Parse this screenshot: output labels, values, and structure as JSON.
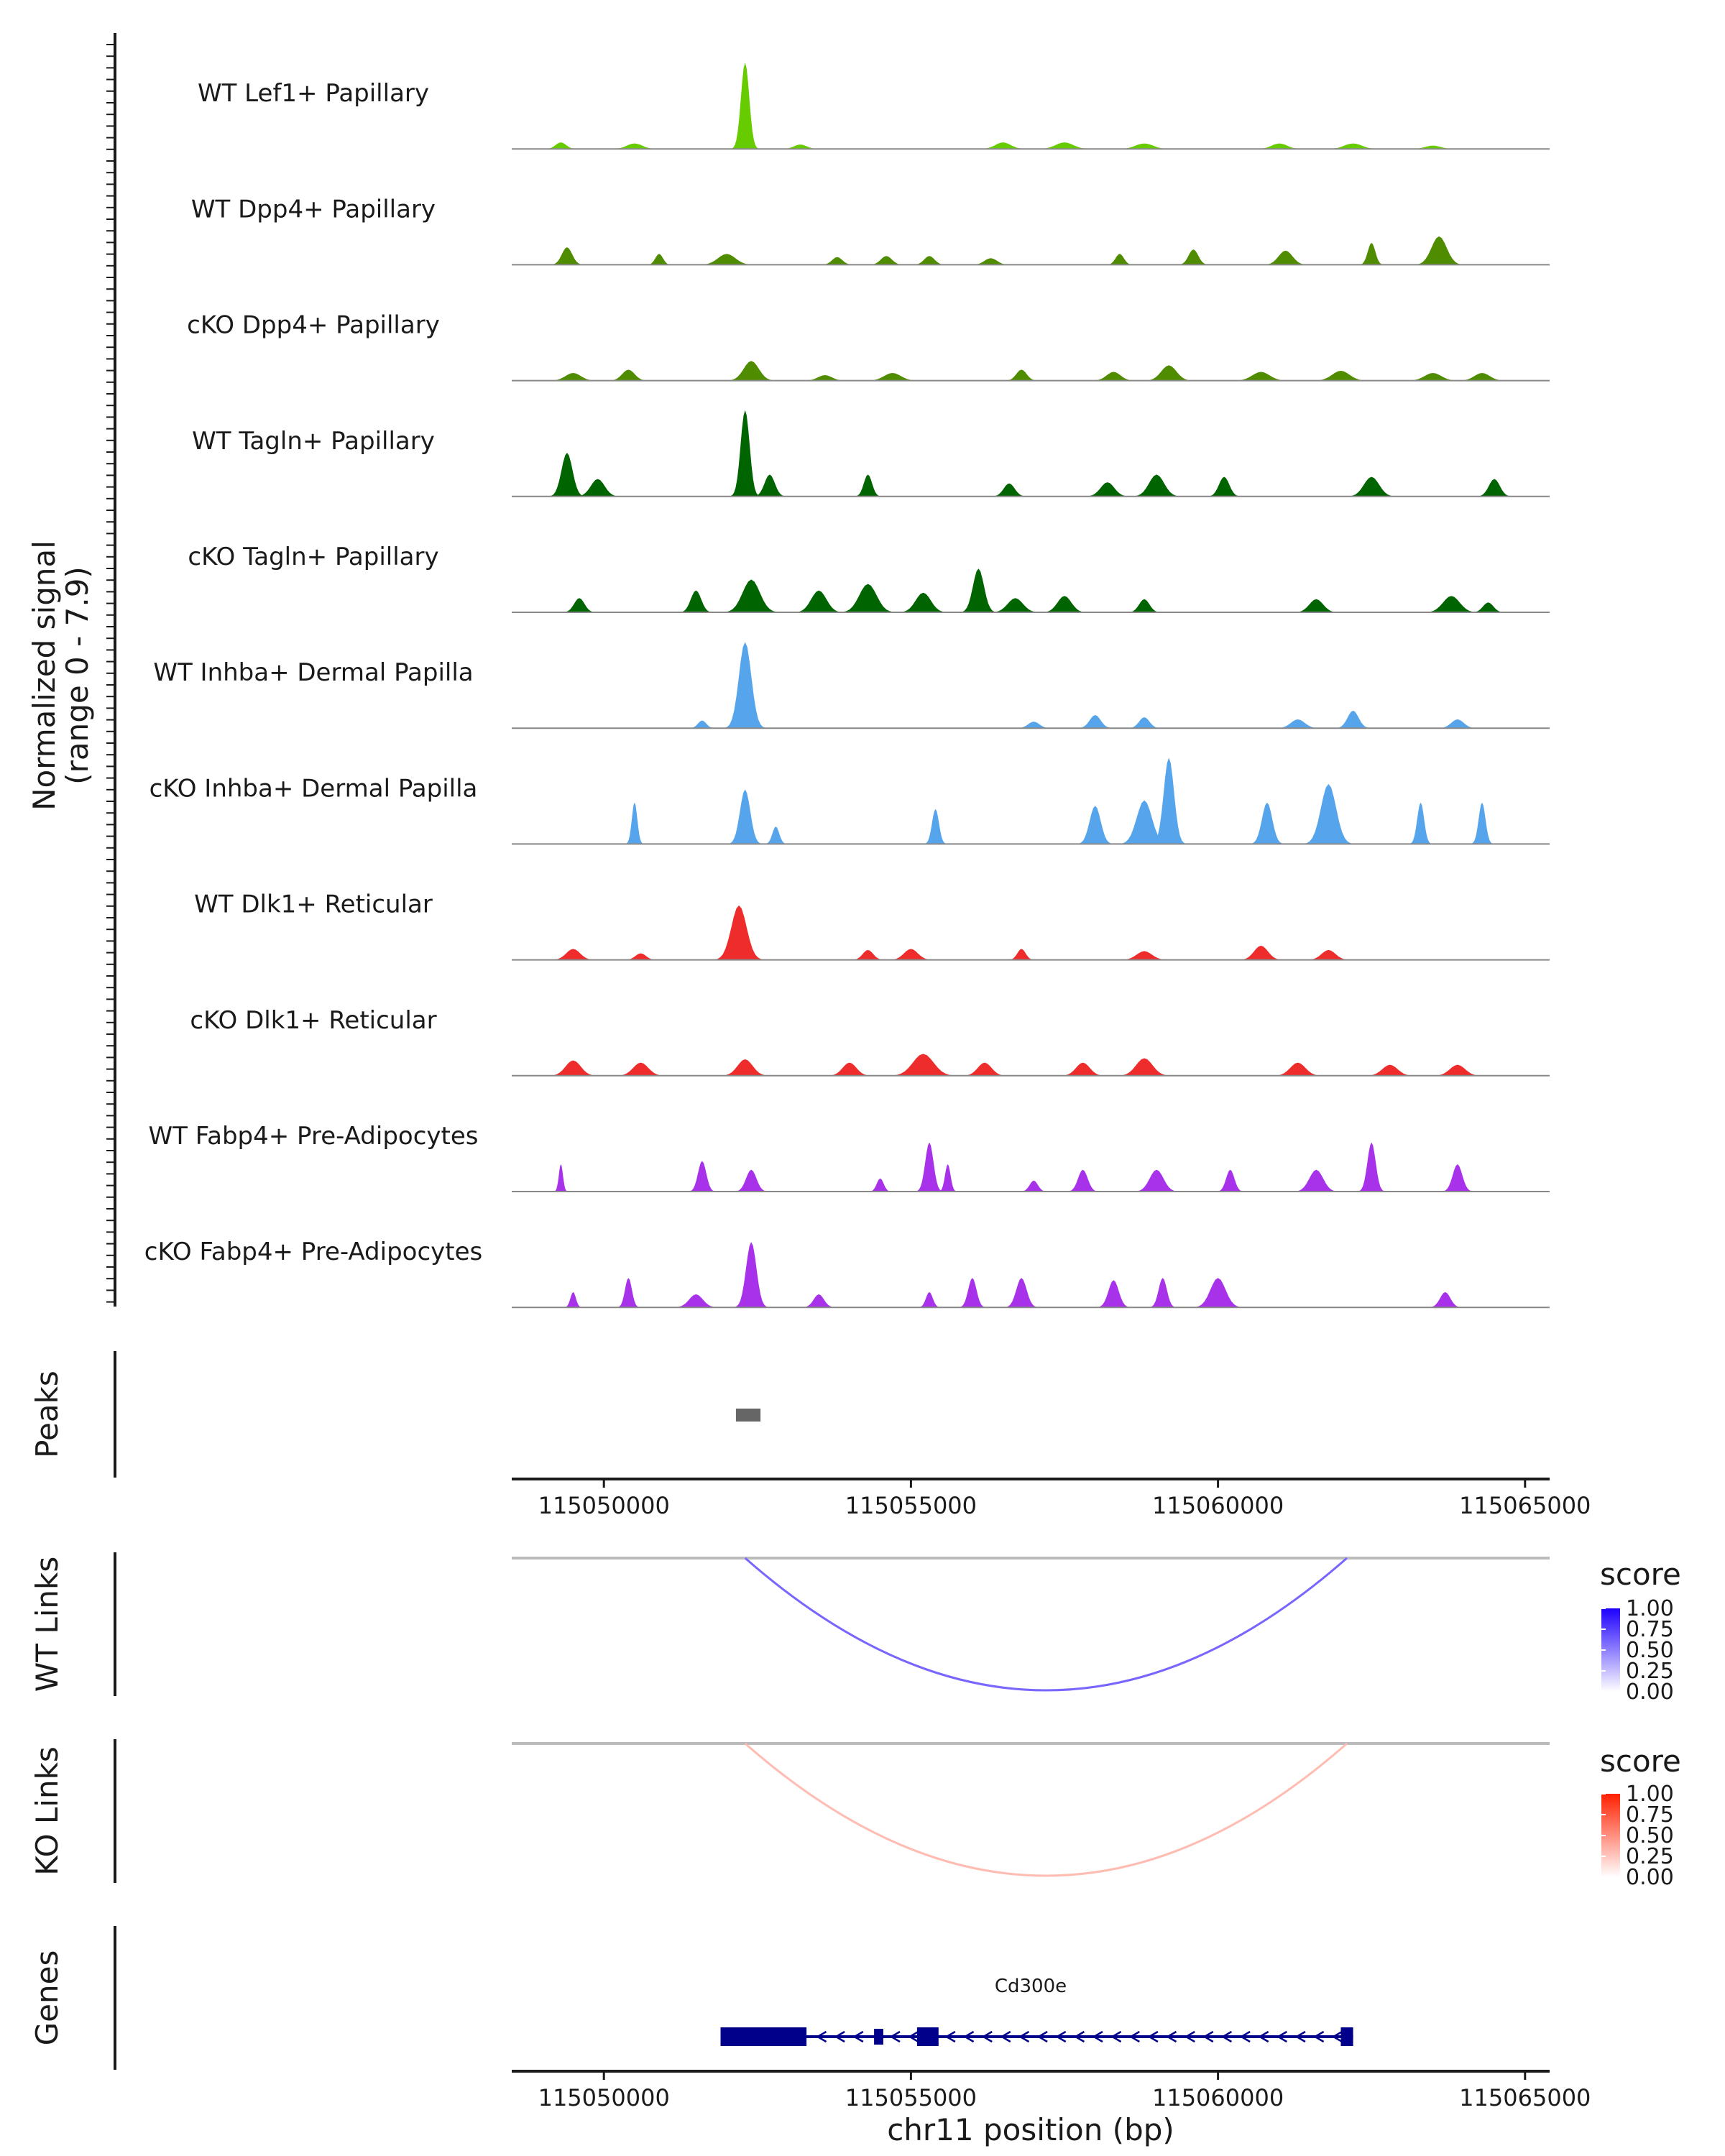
{
  "chart_data": {
    "type": "area",
    "title": "",
    "chromosome": "chr11",
    "xlabel": "chr11 position (bp)",
    "xlim": [
      115048500,
      115065400
    ],
    "x_ticks": [
      115050000,
      115055000,
      115060000,
      115065000
    ],
    "x_tick_labels": [
      "115050000",
      "115055000",
      "115060000",
      "115065000"
    ],
    "ylabel_line1": "Normalized signal",
    "ylabel_line2": "(range 0 - 7.9)",
    "ylim": [
      0,
      7.9
    ],
    "coverage_tracks": [
      {
        "name": "WT Lef1+ Papillary",
        "color": "#66CC00",
        "peaks": [
          [
            115052300,
            7.9,
            120
          ],
          [
            115049300,
            0.6,
            150
          ],
          [
            115050500,
            0.5,
            220
          ],
          [
            115053200,
            0.4,
            180
          ],
          [
            115056500,
            0.6,
            220
          ],
          [
            115057500,
            0.6,
            250
          ],
          [
            115058800,
            0.5,
            250
          ],
          [
            115061000,
            0.5,
            220
          ],
          [
            115062200,
            0.5,
            250
          ],
          [
            115063500,
            0.3,
            220
          ]
        ]
      },
      {
        "name": "WT Dpp4+ Papillary",
        "color": "#4F8C00",
        "peaks": [
          [
            115049400,
            1.6,
            150
          ],
          [
            115050900,
            1.0,
            110
          ],
          [
            115052000,
            1.0,
            250
          ],
          [
            115053800,
            0.7,
            150
          ],
          [
            115054600,
            0.8,
            160
          ],
          [
            115055300,
            0.8,
            150
          ],
          [
            115056300,
            0.6,
            180
          ],
          [
            115058400,
            1.0,
            120
          ],
          [
            115059600,
            1.4,
            140
          ],
          [
            115061100,
            1.3,
            200
          ],
          [
            115062500,
            2.0,
            110
          ],
          [
            115063600,
            2.6,
            220
          ]
        ]
      },
      {
        "name": "cKO Dpp4+ Papillary",
        "color": "#4F8C00",
        "peaks": [
          [
            115049500,
            0.7,
            220
          ],
          [
            115050400,
            1.0,
            180
          ],
          [
            115052400,
            1.8,
            220
          ],
          [
            115053600,
            0.5,
            200
          ],
          [
            115054700,
            0.7,
            240
          ],
          [
            115056800,
            1.0,
            150
          ],
          [
            115058300,
            0.8,
            200
          ],
          [
            115059200,
            1.4,
            220
          ],
          [
            115060700,
            0.8,
            250
          ],
          [
            115062000,
            0.9,
            250
          ],
          [
            115063500,
            0.7,
            240
          ],
          [
            115064300,
            0.7,
            220
          ]
        ]
      },
      {
        "name": "WT Tagln+ Papillary",
        "color": "#006400",
        "peaks": [
          [
            115049400,
            4.0,
            160
          ],
          [
            115049900,
            1.6,
            200
          ],
          [
            115052300,
            7.9,
            130
          ],
          [
            115052700,
            2.0,
            150
          ],
          [
            115054300,
            2.0,
            120
          ],
          [
            115056600,
            1.2,
            160
          ],
          [
            115058200,
            1.3,
            200
          ],
          [
            115059000,
            2.0,
            220
          ],
          [
            115060100,
            1.8,
            150
          ],
          [
            115062500,
            1.8,
            220
          ],
          [
            115064500,
            1.6,
            160
          ]
        ]
      },
      {
        "name": "cKO Tagln+ Papillary",
        "color": "#006400",
        "peaks": [
          [
            115049600,
            1.3,
            150
          ],
          [
            115051500,
            2.0,
            150
          ],
          [
            115052400,
            3.0,
            250
          ],
          [
            115053500,
            2.0,
            220
          ],
          [
            115054300,
            2.6,
            250
          ],
          [
            115055200,
            1.8,
            220
          ],
          [
            115056100,
            4.0,
            160
          ],
          [
            115056700,
            1.3,
            220
          ],
          [
            115057500,
            1.5,
            200
          ],
          [
            115058800,
            1.2,
            150
          ],
          [
            115061600,
            1.2,
            200
          ],
          [
            115063800,
            1.5,
            240
          ],
          [
            115064400,
            0.9,
            150
          ]
        ]
      },
      {
        "name": "WT Inhba+ Dermal Papilla",
        "color": "#56A5EC",
        "peaks": [
          [
            115052300,
            7.9,
            180
          ],
          [
            115051600,
            0.7,
            120
          ],
          [
            115057000,
            0.6,
            160
          ],
          [
            115058000,
            1.2,
            160
          ],
          [
            115058800,
            1.0,
            150
          ],
          [
            115061300,
            0.8,
            200
          ],
          [
            115062200,
            1.6,
            160
          ],
          [
            115063900,
            0.8,
            180
          ]
        ]
      },
      {
        "name": "cKO Inhba+ Dermal Papilla",
        "color": "#56A5EC",
        "peaks": [
          [
            115050500,
            3.8,
            80
          ],
          [
            115052300,
            5.0,
            150
          ],
          [
            115052800,
            1.6,
            100
          ],
          [
            115055400,
            3.2,
            100
          ],
          [
            115058000,
            3.5,
            160
          ],
          [
            115058800,
            4.0,
            220
          ],
          [
            115059200,
            7.9,
            150
          ],
          [
            115060800,
            3.8,
            150
          ],
          [
            115061800,
            5.5,
            220
          ],
          [
            115063300,
            3.8,
            100
          ],
          [
            115064300,
            3.8,
            100
          ]
        ]
      },
      {
        "name": "WT Dlk1+ Reticular",
        "color": "#EE2C2C",
        "peaks": [
          [
            115049500,
            1.0,
            200
          ],
          [
            115050600,
            0.6,
            150
          ],
          [
            115052200,
            5.0,
            220
          ],
          [
            115054300,
            0.9,
            150
          ],
          [
            115055000,
            1.0,
            200
          ],
          [
            115056800,
            1.0,
            120
          ],
          [
            115058800,
            0.8,
            220
          ],
          [
            115060700,
            1.3,
            200
          ],
          [
            115061800,
            0.9,
            200
          ]
        ]
      },
      {
        "name": "cKO Dlk1+ Reticular",
        "color": "#EE2C2C",
        "peaks": [
          [
            115049500,
            1.4,
            220
          ],
          [
            115050600,
            1.2,
            220
          ],
          [
            115052300,
            1.5,
            220
          ],
          [
            115054000,
            1.2,
            200
          ],
          [
            115055200,
            2.0,
            300
          ],
          [
            115056200,
            1.2,
            200
          ],
          [
            115057800,
            1.2,
            200
          ],
          [
            115058800,
            1.6,
            240
          ],
          [
            115061300,
            1.2,
            220
          ],
          [
            115062800,
            1.0,
            220
          ],
          [
            115063900,
            1.0,
            220
          ]
        ]
      },
      {
        "name": "WT Fabp4+ Pre-Adipocytes",
        "color": "#A832EA",
        "peaks": [
          [
            115049300,
            2.5,
            60
          ],
          [
            115051600,
            2.8,
            120
          ],
          [
            115052400,
            2.0,
            150
          ],
          [
            115054500,
            1.2,
            100
          ],
          [
            115055300,
            4.5,
            120
          ],
          [
            115055600,
            2.5,
            80
          ],
          [
            115057000,
            1.0,
            120
          ],
          [
            115057800,
            2.0,
            140
          ],
          [
            115059000,
            2.0,
            200
          ],
          [
            115060200,
            2.0,
            120
          ],
          [
            115061600,
            2.0,
            200
          ],
          [
            115062500,
            4.5,
            120
          ],
          [
            115063900,
            2.5,
            140
          ]
        ]
      },
      {
        "name": "cKO Fabp4+ Pre-Adipocytes",
        "color": "#A832EA",
        "peaks": [
          [
            115049500,
            1.4,
            80
          ],
          [
            115050400,
            2.7,
            100
          ],
          [
            115051500,
            1.2,
            200
          ],
          [
            115052400,
            6.0,
            150
          ],
          [
            115053500,
            1.2,
            150
          ],
          [
            115055300,
            1.4,
            100
          ],
          [
            115056000,
            2.7,
            120
          ],
          [
            115056800,
            2.7,
            150
          ],
          [
            115058300,
            2.5,
            150
          ],
          [
            115059100,
            2.7,
            120
          ],
          [
            115060000,
            2.7,
            220
          ],
          [
            115063700,
            1.4,
            150
          ]
        ]
      }
    ],
    "peaks_track": {
      "label": "Peaks",
      "regions": [
        [
          115052150,
          115052550
        ]
      ],
      "color": "#666666"
    },
    "links_tracks": [
      {
        "label": "WT Links",
        "links": [
          {
            "start": 115052300,
            "end": 115062100,
            "score": 0.6
          }
        ],
        "legend_title": "score",
        "legend_ticks": [
          "1.00",
          "0.75",
          "0.50",
          "0.25",
          "0.00"
        ],
        "low_color": "#FFFFFF",
        "high_color": "#1E00FF"
      },
      {
        "label": "KO Links",
        "links": [
          {
            "start": 115052300,
            "end": 115062100,
            "score": 0.3
          }
        ],
        "legend_title": "score",
        "legend_ticks": [
          "1.00",
          "0.75",
          "0.50",
          "0.25",
          "0.00"
        ],
        "low_color": "#FFFFFF",
        "high_color": "#FF2000"
      }
    ],
    "genes_track": {
      "label": "Genes",
      "gene_name": "Cd300e",
      "strand": "-",
      "start": 115051900,
      "end": 115062200,
      "exons": [
        [
          115051900,
          115053300
        ],
        [
          115054400,
          115054550
        ],
        [
          115055100,
          115055450
        ],
        [
          115062000,
          115062200
        ]
      ],
      "color": "#00008B"
    }
  }
}
